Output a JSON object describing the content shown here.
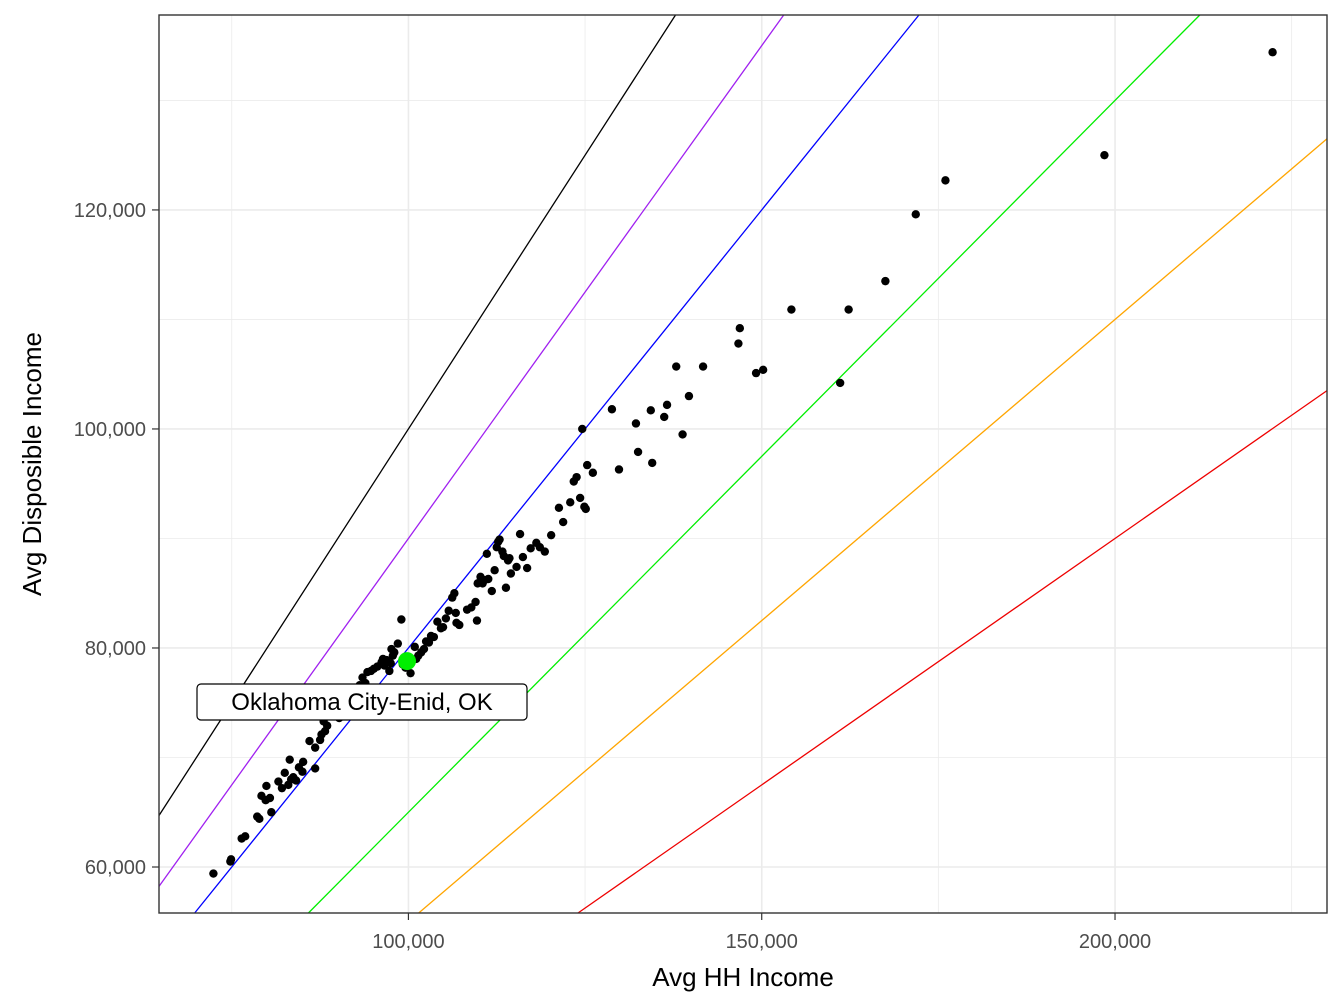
{
  "chart_data": {
    "type": "scatter",
    "xlabel": "Avg HH Income",
    "ylabel": "Avg Disposible Income",
    "xlim": [
      64700,
      230000
    ],
    "ylim": [
      55800,
      137800
    ],
    "x_ticks": [
      100000,
      150000,
      200000
    ],
    "x_tick_labels": [
      "100,000",
      "150,000",
      "200,000"
    ],
    "y_ticks": [
      60000,
      80000,
      100000,
      120000
    ],
    "y_tick_labels": [
      "60,000",
      "80,000",
      "100,000",
      "120,000"
    ],
    "grid": true,
    "reference_lines": [
      {
        "color": "#000000",
        "slope": 1.0,
        "intercept": 0
      },
      {
        "color": "#a020f0",
        "slope": 0.9,
        "intercept": 0
      },
      {
        "color": "#0000ff",
        "slope": 0.8,
        "intercept": 0
      },
      {
        "color": "#00ee00",
        "slope": 0.65,
        "intercept": 0
      },
      {
        "color": "#ffa500",
        "slope": 0.55,
        "intercept": 0
      },
      {
        "color": "#ee0000",
        "slope": 0.45,
        "intercept": 0
      }
    ],
    "series": [
      {
        "color": "#000000",
        "points": [
          [
            72400,
            59400
          ],
          [
            74800,
            60500
          ],
          [
            74900,
            60700
          ],
          [
            76400,
            62600
          ],
          [
            76900,
            62800
          ],
          [
            78600,
            64600
          ],
          [
            78900,
            64400
          ],
          [
            79200,
            66500
          ],
          [
            79800,
            66100
          ],
          [
            79900,
            67400
          ],
          [
            80400,
            66300
          ],
          [
            80600,
            65000
          ],
          [
            81600,
            67800
          ],
          [
            82100,
            67200
          ],
          [
            82500,
            68600
          ],
          [
            83000,
            67500
          ],
          [
            83400,
            68000
          ],
          [
            83200,
            69800
          ],
          [
            83700,
            68200
          ],
          [
            84100,
            67900
          ],
          [
            84500,
            69100
          ],
          [
            85100,
            69600
          ],
          [
            85000,
            68700
          ],
          [
            86000,
            71500
          ],
          [
            86800,
            69000
          ],
          [
            86800,
            70900
          ],
          [
            87500,
            71600
          ],
          [
            87700,
            72100
          ],
          [
            88200,
            72400
          ],
          [
            88500,
            72900
          ],
          [
            88000,
            73300
          ],
          [
            89100,
            73800
          ],
          [
            89600,
            74200
          ],
          [
            90200,
            73600
          ],
          [
            90800,
            74500
          ],
          [
            91300,
            75000
          ],
          [
            91700,
            75500
          ],
          [
            92200,
            75200
          ],
          [
            92500,
            76100
          ],
          [
            93100,
            76600
          ],
          [
            93500,
            77300
          ],
          [
            93900,
            76800
          ],
          [
            94200,
            77800
          ],
          [
            94700,
            77900
          ],
          [
            95100,
            78100
          ],
          [
            95600,
            78300
          ],
          [
            96200,
            78700
          ],
          [
            96600,
            78400
          ],
          [
            96400,
            79000
          ],
          [
            96900,
            78900
          ],
          [
            97300,
            77900
          ],
          [
            97500,
            78600
          ],
          [
            97800,
            79300
          ],
          [
            97600,
            79900
          ],
          [
            98000,
            79600
          ],
          [
            98500,
            80400
          ],
          [
            99000,
            82600
          ],
          [
            99200,
            78500
          ],
          [
            99600,
            78200
          ],
          [
            100300,
            77700
          ],
          [
            100900,
            80100
          ],
          [
            101100,
            79000
          ],
          [
            101400,
            79300
          ],
          [
            101800,
            79600
          ],
          [
            102200,
            79900
          ],
          [
            102500,
            80600
          ],
          [
            102900,
            80500
          ],
          [
            103200,
            81100
          ],
          [
            103600,
            81000
          ],
          [
            104100,
            82400
          ],
          [
            104600,
            81800
          ],
          [
            104900,
            81900
          ],
          [
            105300,
            82700
          ],
          [
            105700,
            83400
          ],
          [
            106200,
            84600
          ],
          [
            106500,
            85000
          ],
          [
            106800,
            82300
          ],
          [
            107200,
            82100
          ],
          [
            106700,
            83200
          ],
          [
            108300,
            83500
          ],
          [
            108900,
            83700
          ],
          [
            109500,
            84200
          ],
          [
            109800,
            85900
          ],
          [
            110200,
            86500
          ],
          [
            110500,
            85900
          ],
          [
            110800,
            86200
          ],
          [
            111300,
            86300
          ],
          [
            111100,
            88600
          ],
          [
            111800,
            85200
          ],
          [
            112200,
            87100
          ],
          [
            112500,
            89200
          ],
          [
            112700,
            89700
          ],
          [
            112900,
            89900
          ],
          [
            113300,
            88800
          ],
          [
            113500,
            88400
          ],
          [
            113800,
            85500
          ],
          [
            114100,
            88000
          ],
          [
            114300,
            88200
          ],
          [
            114500,
            86800
          ],
          [
            115300,
            87400
          ],
          [
            115800,
            90400
          ],
          [
            116200,
            88300
          ],
          [
            116800,
            87300
          ],
          [
            117300,
            89100
          ],
          [
            118100,
            89600
          ],
          [
            118600,
            89200
          ],
          [
            119300,
            88800
          ],
          [
            120200,
            90300
          ],
          [
            121300,
            92800
          ],
          [
            121900,
            91500
          ],
          [
            122900,
            93300
          ],
          [
            123400,
            95200
          ],
          [
            123800,
            95600
          ],
          [
            124300,
            93700
          ],
          [
            124600,
            100000
          ],
          [
            124900,
            92900
          ],
          [
            125100,
            92700
          ],
          [
            125300,
            96700
          ],
          [
            126100,
            96000
          ],
          [
            128800,
            101800
          ],
          [
            129800,
            96300
          ],
          [
            132200,
            100500
          ],
          [
            132500,
            97900
          ],
          [
            134300,
            101700
          ],
          [
            134500,
            96900
          ],
          [
            136200,
            101100
          ],
          [
            136600,
            102200
          ],
          [
            137900,
            105700
          ],
          [
            138800,
            99500
          ],
          [
            139700,
            103000
          ],
          [
            141700,
            105700
          ],
          [
            146900,
            109200
          ],
          [
            146700,
            107800
          ],
          [
            149200,
            105100
          ],
          [
            150200,
            105400
          ],
          [
            154200,
            110900
          ],
          [
            161100,
            104200
          ],
          [
            162300,
            110900
          ],
          [
            167500,
            113500
          ],
          [
            171800,
            119600
          ],
          [
            176000,
            122700
          ],
          [
            198500,
            125000
          ],
          [
            222300,
            134400
          ],
          [
            109700,
            82500
          ]
        ]
      }
    ],
    "highlight": {
      "point": [
        99800,
        78800
      ],
      "color": "#00ee00",
      "label": "Oklahoma City-Enid, OK"
    }
  }
}
